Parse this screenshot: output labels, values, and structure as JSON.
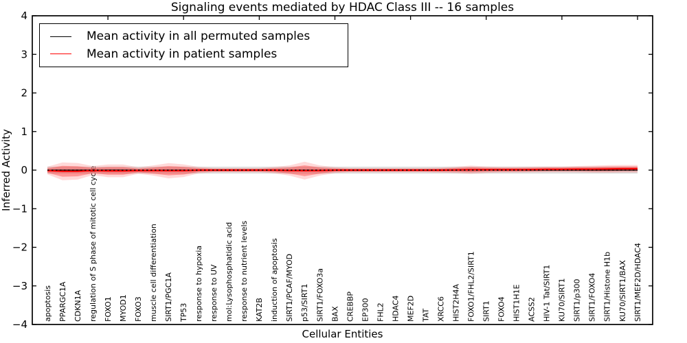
{
  "title": "Signaling events mediated by HDAC Class III -- 16 samples",
  "legend": {
    "position": "upper left",
    "entries": [
      {
        "label": "Mean activity in all permuted samples",
        "color": "#000000",
        "style": "solid"
      },
      {
        "label": "Mean activity in patient samples",
        "color": "#ff0000",
        "style": "solid"
      }
    ]
  },
  "axes": {
    "xlabel": "Cellular Entities",
    "ylabel": "Inferred Activity"
  },
  "colors": {
    "permuted_line": "#000000",
    "patient_line": "#ff0000",
    "permuted_band": "#c8c8c8",
    "patient_band": "#ff0000",
    "frame": "#000000"
  },
  "chart_data": {
    "type": "line",
    "title": "Signaling events mediated by HDAC Class III -- 16 samples",
    "xlabel": "Cellular Entities",
    "ylabel": "Inferred Activity",
    "ylim": [
      -4,
      4
    ],
    "yticks": [
      "4",
      "3",
      "2",
      "1",
      "0",
      "−1",
      "−2",
      "−3",
      "−4"
    ],
    "grid": false,
    "legend_position": "upper left",
    "categories": [
      "apoptosis",
      "PPARGC1A",
      "CDKN1A",
      "regulation of S phase of mitotic cell cycle",
      "FOXO1",
      "MYOD1",
      "FOXO3",
      "muscle cell differentiation",
      "SIRT1/PGC1A",
      "TP53",
      "response to hypoxia",
      "response to UV",
      "mol:Lysophosphatidic acid",
      "response to nutrient levels",
      "KAT2B",
      "induction of apoptosis",
      "SIRT1/PCAF/MYOD",
      "p53/SIRT1",
      "SIRT1/FOXO3a",
      "BAX",
      "CREBBP",
      "EP300",
      "FHL2",
      "HDAC4",
      "MEF2D",
      "TAT",
      "XRCC6",
      "HIST2H4A",
      "FOXO1/FHL2/SIRT1",
      "SIRT1",
      "FOXO4",
      "HIST1H1E",
      "ACSS2",
      "HIV-1 Tat/SIRT1",
      "KU70/SIRT1",
      "SIRT1/p300",
      "SIRT1/FOXO4",
      "SIRT1/Histone H1b",
      "KU70/SIRT1/BAX",
      "SIRT1/MEF2D/HDAC4"
    ],
    "series": [
      {
        "name": "Mean activity in all permuted samples",
        "color": "#000000",
        "values": [
          0,
          0,
          0,
          0,
          0,
          0,
          0,
          0,
          0,
          0,
          0,
          0,
          0,
          0,
          0,
          0,
          0,
          0,
          0,
          0,
          0,
          0,
          0,
          0,
          0,
          0,
          0,
          0,
          0,
          0,
          0,
          0,
          0,
          0,
          0,
          0,
          0,
          0,
          0,
          0
        ]
      },
      {
        "name": "Mean activity in patient samples",
        "color": "#ff0000",
        "values": [
          -0.01,
          -0.03,
          -0.03,
          -0.01,
          -0.02,
          -0.02,
          -0.01,
          -0.01,
          -0.015,
          -0.015,
          0,
          0,
          0,
          0,
          0,
          0,
          -0.01,
          -0.015,
          -0.01,
          0,
          0,
          0,
          0,
          0,
          0,
          0,
          0,
          0.005,
          0.01,
          0.01,
          0.01,
          0.01,
          0.015,
          0.02,
          0.02,
          0.025,
          0.025,
          0.03,
          0.035,
          0.035
        ]
      }
    ],
    "bands": {
      "permuted_halfwidth": 0.09,
      "patient_std": [
        0.06,
        0.14,
        0.13,
        0.07,
        0.1,
        0.1,
        0.05,
        0.08,
        0.12,
        0.1,
        0.05,
        0.035,
        0.035,
        0.035,
        0.035,
        0.05,
        0.08,
        0.14,
        0.08,
        0.045,
        0.035,
        0.035,
        0.035,
        0.035,
        0.035,
        0.035,
        0.04,
        0.05,
        0.065,
        0.05,
        0.045,
        0.045,
        0.045,
        0.045,
        0.045,
        0.05,
        0.055,
        0.06,
        0.06,
        0.06
      ],
      "outer_multiplier": 1.65
    }
  }
}
